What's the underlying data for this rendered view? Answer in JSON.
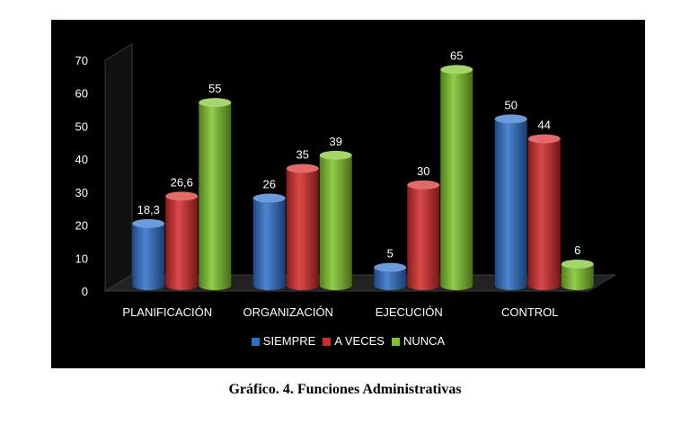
{
  "caption": "Gráfico. 4. Funciones Administrativas",
  "chart_data": {
    "type": "bar",
    "style": "3d-cylinder",
    "categories": [
      "PLANIFICACIÓN",
      "ORGANIZACIÓN",
      "EJECUCIÓN",
      "CONTROL"
    ],
    "series": [
      {
        "name": "SIEMPRE",
        "color": "#2e6fc9",
        "values": [
          18.3,
          26,
          5,
          50
        ],
        "labels": [
          "18,3",
          "26",
          "5",
          "50"
        ]
      },
      {
        "name": "A VECES",
        "color": "#d42a2a",
        "values": [
          26.6,
          35,
          30,
          44
        ],
        "labels": [
          "26,6",
          "35",
          "30",
          "44"
        ]
      },
      {
        "name": "NUNCA",
        "color": "#7fc42b",
        "values": [
          55,
          39,
          65,
          6
        ],
        "labels": [
          "55",
          "39",
          "65",
          "6"
        ]
      }
    ],
    "ylim": [
      0,
      70
    ],
    "yticks": [
      0,
      10,
      20,
      30,
      40,
      50,
      60,
      70
    ],
    "legend_position": "bottom",
    "grid": false,
    "background": "#000000"
  }
}
